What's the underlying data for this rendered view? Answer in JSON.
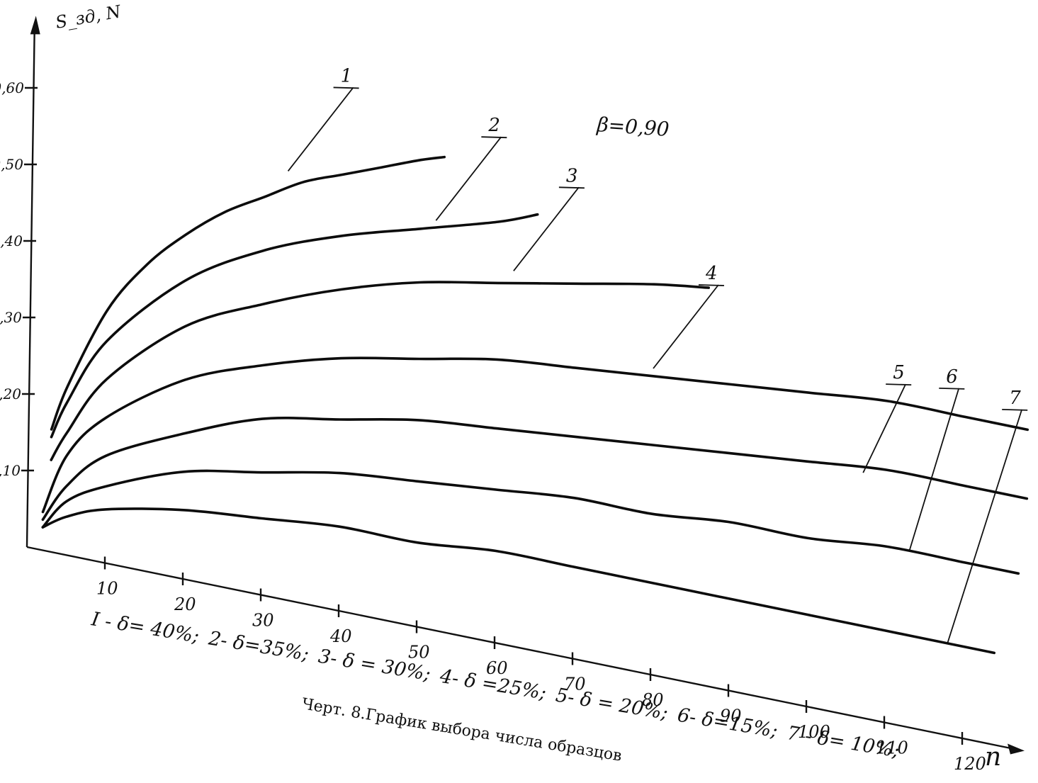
{
  "chart_data": {
    "type": "line",
    "title": "",
    "ylabel": "S_зд, N",
    "xlabel": "n",
    "annotation": "β=0,90",
    "caption": "Черт. 8.График выбора числа образцов",
    "xlim": [
      0,
      125
    ],
    "ylim": [
      0,
      0.85
    ],
    "x_ticks": [
      10,
      20,
      30,
      40,
      50,
      60,
      70,
      80,
      90,
      100,
      110,
      120
    ],
    "x_tick_labels": [
      "10",
      "20",
      "30",
      "40",
      "50",
      "60",
      "70",
      "80",
      "90",
      "100",
      "110",
      "120"
    ],
    "y_ticks": [
      0.1,
      0.2,
      0.3,
      0.4,
      0.5,
      0.6
    ],
    "y_tick_labels": [
      "0,10",
      "0,20",
      "0,30",
      "0,40",
      "0,50",
      "0,60"
    ],
    "legend_text": [
      "I - δ= 40%;",
      "2- δ=35%;",
      "3- δ = 30%;",
      "4- δ =25%;",
      "5- δ = 20%;",
      "6- δ=15%;",
      "7 - δ= 10%;"
    ],
    "series": [
      {
        "name": "1",
        "x": [
          3,
          5,
          10,
          15,
          20,
          25,
          30,
          35,
          40,
          45,
          50,
          53
        ],
        "y": [
          0.16,
          0.22,
          0.33,
          0.4,
          0.45,
          0.49,
          0.52,
          0.55,
          0.57,
          0.59,
          0.61,
          0.62
        ]
      },
      {
        "name": "2",
        "x": [
          3,
          5,
          10,
          20,
          30,
          40,
          50,
          60,
          65
        ],
        "y": [
          0.15,
          0.2,
          0.29,
          0.39,
          0.45,
          0.49,
          0.52,
          0.55,
          0.57
        ]
      },
      {
        "name": "3",
        "x": [
          3,
          5,
          10,
          20,
          30,
          40,
          50,
          60,
          70,
          80,
          87
        ],
        "y": [
          0.12,
          0.16,
          0.24,
          0.33,
          0.38,
          0.42,
          0.45,
          0.47,
          0.49,
          0.51,
          0.52
        ]
      },
      {
        "name": "4",
        "x": [
          2,
          5,
          10,
          20,
          30,
          40,
          50,
          60,
          70,
          80,
          90,
          100,
          110,
          120,
          128
        ],
        "y": [
          0.05,
          0.13,
          0.19,
          0.26,
          0.3,
          0.33,
          0.35,
          0.37,
          0.38,
          0.39,
          0.4,
          0.41,
          0.42,
          0.42,
          0.42
        ]
      },
      {
        "name": "5",
        "x": [
          2,
          5,
          10,
          20,
          30,
          40,
          50,
          60,
          70,
          80,
          90,
          100,
          110,
          120,
          128
        ],
        "y": [
          0.04,
          0.09,
          0.14,
          0.19,
          0.23,
          0.25,
          0.27,
          0.28,
          0.29,
          0.3,
          0.31,
          0.32,
          0.33,
          0.33,
          0.33
        ]
      },
      {
        "name": "6",
        "x": [
          2,
          5,
          10,
          20,
          30,
          40,
          50,
          60,
          70,
          80,
          90,
          100,
          110,
          120,
          127
        ],
        "y": [
          0.03,
          0.07,
          0.1,
          0.14,
          0.16,
          0.18,
          0.19,
          0.2,
          0.21,
          0.21,
          0.22,
          0.22,
          0.23,
          0.23,
          0.23
        ]
      },
      {
        "name": "7",
        "x": [
          2,
          5,
          10,
          20,
          30,
          40,
          50,
          60,
          70,
          80,
          90,
          100,
          110,
          120,
          124
        ],
        "y": [
          0.03,
          0.05,
          0.07,
          0.09,
          0.1,
          0.11,
          0.11,
          0.12,
          0.12,
          0.12,
          0.12,
          0.12,
          0.12,
          0.12,
          0.12
        ]
      }
    ],
    "grid": false,
    "legend_position": "below x-axis"
  }
}
